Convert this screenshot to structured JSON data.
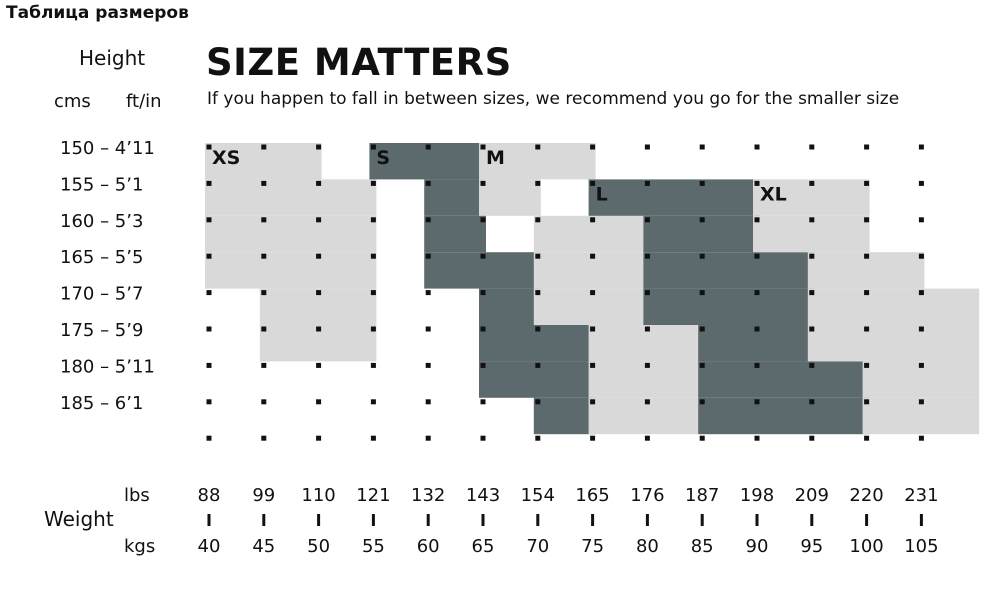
{
  "page_title": "Таблица размеров",
  "chart_data": {
    "type": "heatmap",
    "title": "SIZE MATTERS",
    "subtitle": "If you happen to fall in between sizes, we recommend you go for the smaller size",
    "height_axis": {
      "label": "Height",
      "unit_cm_label": "cms",
      "unit_ft_label": "ft/in",
      "ticks": [
        {
          "cm": 150,
          "label": "150 – 4’11"
        },
        {
          "cm": 155,
          "label": "155 – 5’1"
        },
        {
          "cm": 160,
          "label": "160 – 5’3"
        },
        {
          "cm": 165,
          "label": "165 – 5’5"
        },
        {
          "cm": 170,
          "label": "170 – 5’7"
        },
        {
          "cm": 175,
          "label": "175 – 5’9"
        },
        {
          "cm": 180,
          "label": "180 – 5’11"
        },
        {
          "cm": 185,
          "label": "185 – 6’1"
        }
      ]
    },
    "weight_axis": {
      "label": "Weight",
      "lbs_label": "lbs",
      "kgs_label": "kgs",
      "lbs": [
        "88",
        "99",
        "110",
        "121",
        "132",
        "143",
        "154",
        "165",
        "176",
        "187",
        "198",
        "209",
        "220",
        "231"
      ],
      "kgs": [
        "40",
        "45",
        "50",
        "55",
        "60",
        "65",
        "70",
        "75",
        "80",
        "85",
        "90",
        "95",
        "100",
        "105"
      ]
    },
    "colors": {
      "light": "#d9d9d9",
      "dark": "#5c6a6d",
      "dot": "#111111"
    },
    "sizes": [
      {
        "name": "XS",
        "color": "light",
        "ranges": [
          {
            "height_cm": 150,
            "kg_from": 40,
            "kg_to": 50
          },
          {
            "height_cm": 155,
            "kg_from": 40,
            "kg_to": 55
          },
          {
            "height_cm": 160,
            "kg_from": 40,
            "kg_to": 55
          },
          {
            "height_cm": 165,
            "kg_from": 40,
            "kg_to": 55
          },
          {
            "height_cm": 170,
            "kg_from": 45,
            "kg_to": 55
          },
          {
            "height_cm": 175,
            "kg_from": 45,
            "kg_to": 55
          }
        ]
      },
      {
        "name": "S",
        "color": "dark",
        "ranges": [
          {
            "height_cm": 150,
            "kg_from": 55,
            "kg_to": 65
          },
          {
            "height_cm": 155,
            "kg_from": 60,
            "kg_to": 65
          },
          {
            "height_cm": 160,
            "kg_from": 60,
            "kg_to": 65
          },
          {
            "height_cm": 165,
            "kg_from": 60,
            "kg_to": 70
          },
          {
            "height_cm": 170,
            "kg_from": 65,
            "kg_to": 70
          },
          {
            "height_cm": 175,
            "kg_from": 65,
            "kg_to": 75
          },
          {
            "height_cm": 180,
            "kg_from": 65,
            "kg_to": 75
          },
          {
            "height_cm": 185,
            "kg_from": 70,
            "kg_to": 75
          }
        ]
      },
      {
        "name": "M",
        "color": "light",
        "ranges": [
          {
            "height_cm": 150,
            "kg_from": 65,
            "kg_to": 75
          },
          {
            "height_cm": 155,
            "kg_from": 65,
            "kg_to": 70
          },
          {
            "height_cm": 160,
            "kg_from": 70,
            "kg_to": 80
          },
          {
            "height_cm": 165,
            "kg_from": 70,
            "kg_to": 80
          },
          {
            "height_cm": 170,
            "kg_from": 70,
            "kg_to": 80
          },
          {
            "height_cm": 175,
            "kg_from": 75,
            "kg_to": 85
          },
          {
            "height_cm": 180,
            "kg_from": 75,
            "kg_to": 85
          },
          {
            "height_cm": 185,
            "kg_from": 75,
            "kg_to": 85
          }
        ]
      },
      {
        "name": "L",
        "color": "dark",
        "ranges": [
          {
            "height_cm": 155,
            "kg_from": 75,
            "kg_to": 90
          },
          {
            "height_cm": 160,
            "kg_from": 80,
            "kg_to": 90
          },
          {
            "height_cm": 165,
            "kg_from": 80,
            "kg_to": 95
          },
          {
            "height_cm": 170,
            "kg_from": 80,
            "kg_to": 95
          },
          {
            "height_cm": 175,
            "kg_from": 85,
            "kg_to": 95
          },
          {
            "height_cm": 180,
            "kg_from": 85,
            "kg_to": 100
          },
          {
            "height_cm": 185,
            "kg_from": 85,
            "kg_to": 100
          }
        ]
      },
      {
        "name": "XL",
        "color": "light",
        "ranges": [
          {
            "height_cm": 155,
            "kg_from": 90,
            "kg_to": 100
          },
          {
            "height_cm": 160,
            "kg_from": 90,
            "kg_to": 100
          },
          {
            "height_cm": 165,
            "kg_from": 95,
            "kg_to": 105
          },
          {
            "height_cm": 170,
            "kg_from": 95,
            "kg_to": 110
          },
          {
            "height_cm": 175,
            "kg_from": 95,
            "kg_to": 110
          },
          {
            "height_cm": 180,
            "kg_from": 100,
            "kg_to": 110
          },
          {
            "height_cm": 185,
            "kg_from": 100,
            "kg_to": 110
          }
        ]
      }
    ]
  }
}
